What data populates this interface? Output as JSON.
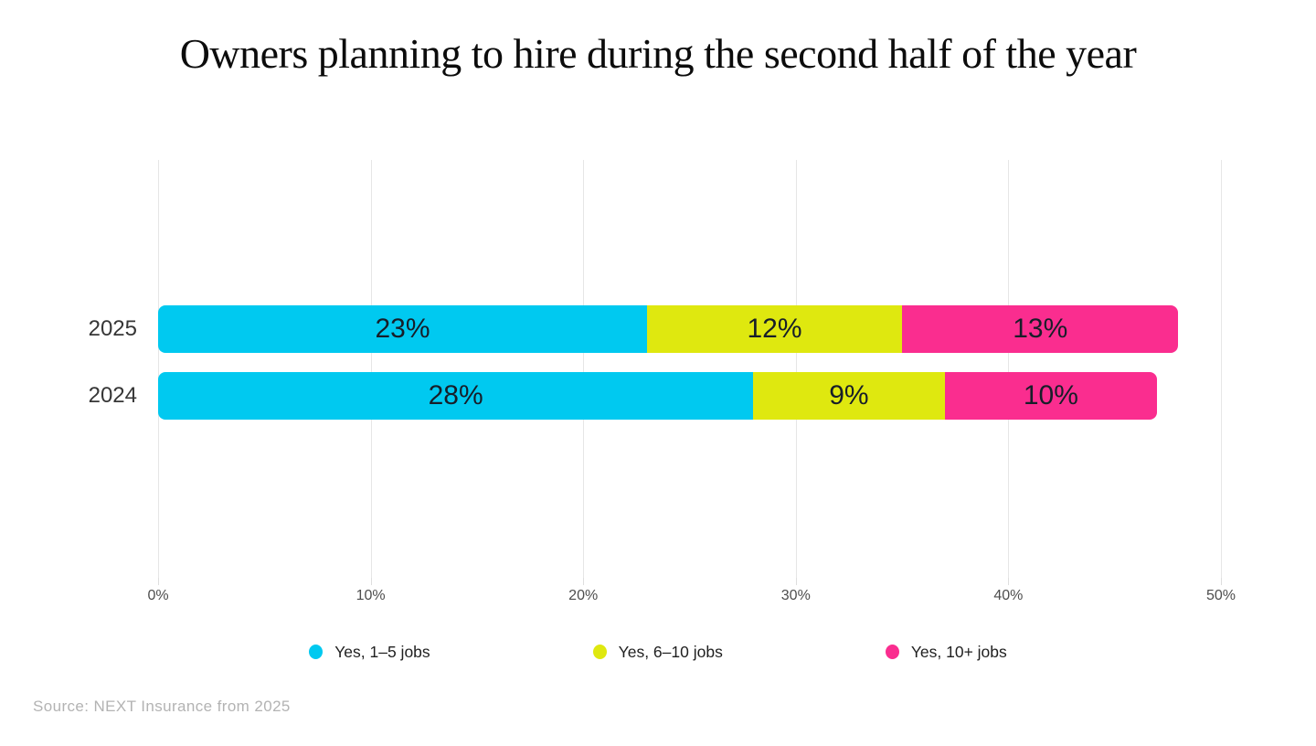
{
  "title": "Owners planning to hire during the second half of the year",
  "source": "Source: NEXT Insurance from 2025",
  "colors": {
    "background": "#ffffff",
    "gridline": "#e6e6e6",
    "bar_label_text": "#171e29",
    "axis_text": "#4d4d4d",
    "category_text": "#363636",
    "source_text": "#b3b3b3"
  },
  "chart_data": {
    "type": "bar",
    "orientation": "horizontal",
    "stacked": true,
    "title": "Owners planning to hire during the second half of the year",
    "categories": [
      "2025",
      "2024"
    ],
    "series": [
      {
        "name": "Yes, 1–5 jobs",
        "color": "#00C9F0",
        "values": [
          23,
          28
        ]
      },
      {
        "name": "Yes, 6–10 jobs",
        "color": "#DFE80F",
        "values": [
          12,
          9
        ]
      },
      {
        "name": "Yes, 10+ jobs",
        "color": "#FA2D8F",
        "values": [
          13,
          10
        ]
      }
    ],
    "value_suffix": "%",
    "xlabel": "",
    "ylabel": "",
    "xlim": [
      0,
      50
    ],
    "x_ticks": [
      0,
      10,
      20,
      30,
      40,
      50
    ],
    "x_tick_labels": [
      "0%",
      "10%",
      "20%",
      "30%",
      "40%",
      "50%"
    ],
    "grid": true,
    "legend_position": "bottom"
  }
}
